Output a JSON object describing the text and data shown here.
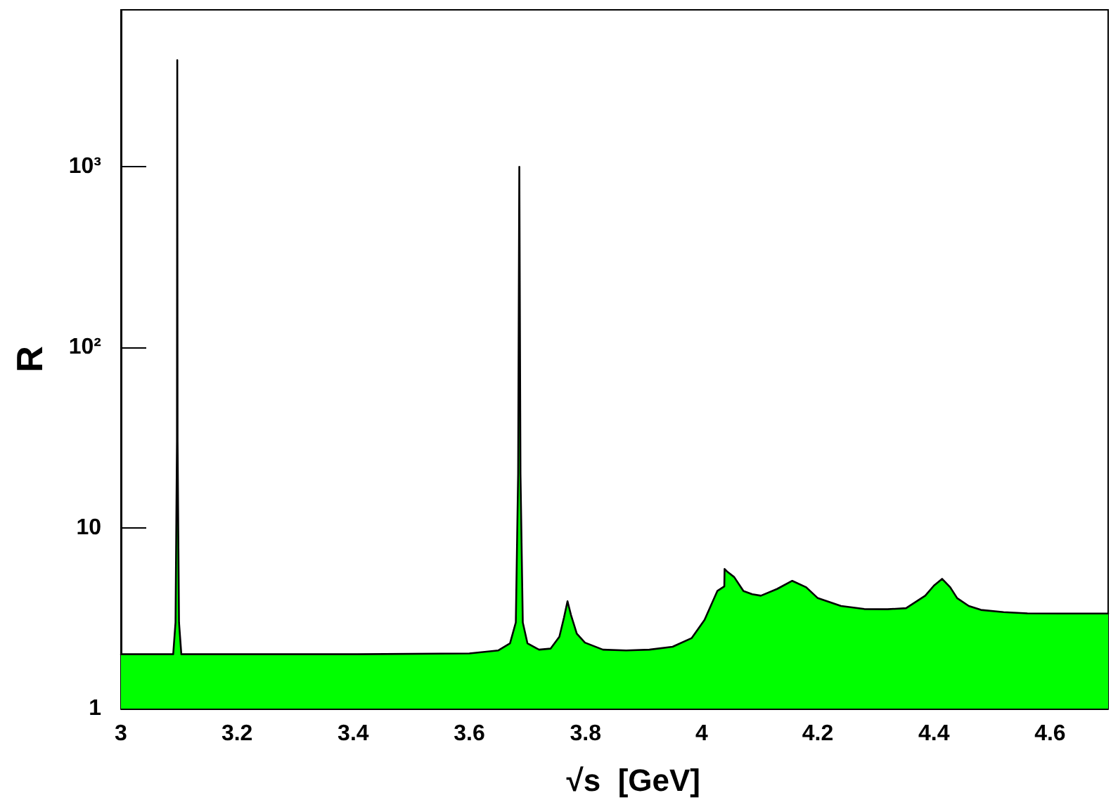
{
  "chart_data": {
    "type": "area",
    "xlabel": "√s  [GeV]",
    "ylabel": "R",
    "log": "y",
    "grid": false,
    "marker": "none",
    "line_style": "solid",
    "xlim": [
      3,
      4.7
    ],
    "xticks": [
      3,
      3.2,
      3.4,
      3.6,
      3.8,
      4,
      4.2,
      4.4,
      4.6
    ],
    "ylim": [
      1,
      7400
    ],
    "yticks": [
      1,
      10,
      {
        "value": 100,
        "label": "10²"
      },
      {
        "value": 1000,
        "label": "10³"
      }
    ],
    "series": [
      {
        "color": "#00ff00",
        "x": [
          3,
          3.08,
          3.09,
          3.094,
          3.0965,
          3.097,
          3.0975,
          3.1,
          3.104,
          3.2,
          3.4,
          3.6,
          3.65,
          3.67,
          3.68,
          3.684,
          3.686,
          3.688,
          3.692,
          3.7,
          3.72,
          3.74,
          3.755,
          3.763,
          3.769,
          3.775,
          3.785,
          3.799,
          3.83,
          3.87,
          3.91,
          3.95,
          3.983,
          4.005,
          4.027,
          4.039,
          4.0395,
          4.045,
          4.056,
          4.072,
          4.087,
          4.102,
          4.13,
          4.156,
          4.18,
          4.2,
          4.24,
          4.28,
          4.32,
          4.352,
          4.385,
          4.4,
          4.414,
          4.428,
          4.44,
          4.46,
          4.481,
          4.52,
          4.561,
          4.62,
          4.7
        ],
        "values": [
          2,
          2,
          2,
          3,
          30,
          3900,
          30,
          3,
          2,
          2,
          2,
          2.02,
          2.1,
          2.3,
          3,
          20,
          1000,
          20,
          3,
          2.3,
          2.12,
          2.15,
          2.5,
          3.2,
          3.93,
          3.3,
          2.6,
          2.32,
          2.12,
          2.1,
          2.12,
          2.2,
          2.46,
          3.1,
          4.48,
          4.75,
          5.93,
          5.7,
          5.35,
          4.48,
          4.3,
          4.22,
          4.6,
          5.1,
          4.7,
          4.09,
          3.7,
          3.56,
          3.55,
          3.6,
          4.22,
          4.8,
          5.23,
          4.7,
          4.09,
          3.7,
          3.52,
          3.42,
          3.37,
          3.36,
          3.36
        ]
      }
    ]
  }
}
